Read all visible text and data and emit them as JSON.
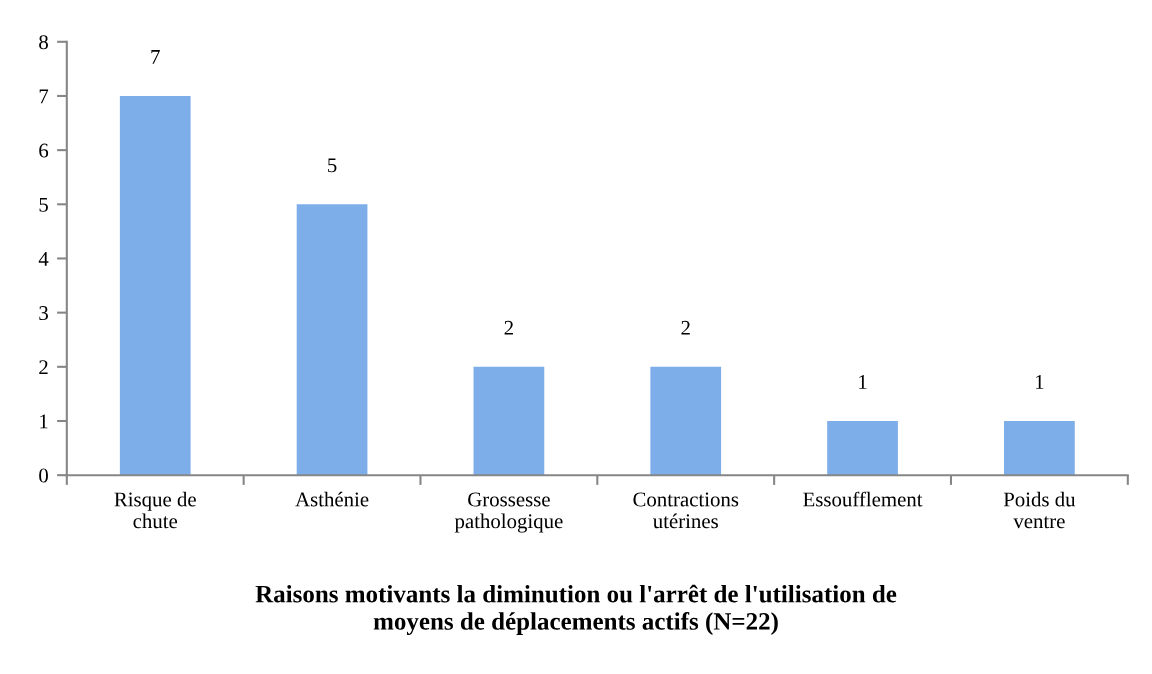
{
  "chart_data": {
    "type": "bar",
    "title": "Raisons motivants la diminution ou l'arrêt de l'utilisation de\nmoyens de déplacements actifs (N=22)",
    "categories": [
      "Risque de\nchute",
      "Asthénie",
      "Grossesse\npathologique",
      "Contractions\nutérines",
      "Essoufflement",
      "Poids du\nventre"
    ],
    "values": [
      7,
      5,
      2,
      2,
      1,
      1
    ],
    "color": "#7daeea",
    "ylim": [
      0,
      8
    ],
    "yticks": [
      0,
      1,
      2,
      3,
      4,
      5,
      6,
      7,
      8
    ],
    "grid": false,
    "legend": false,
    "data_labels": true
  }
}
